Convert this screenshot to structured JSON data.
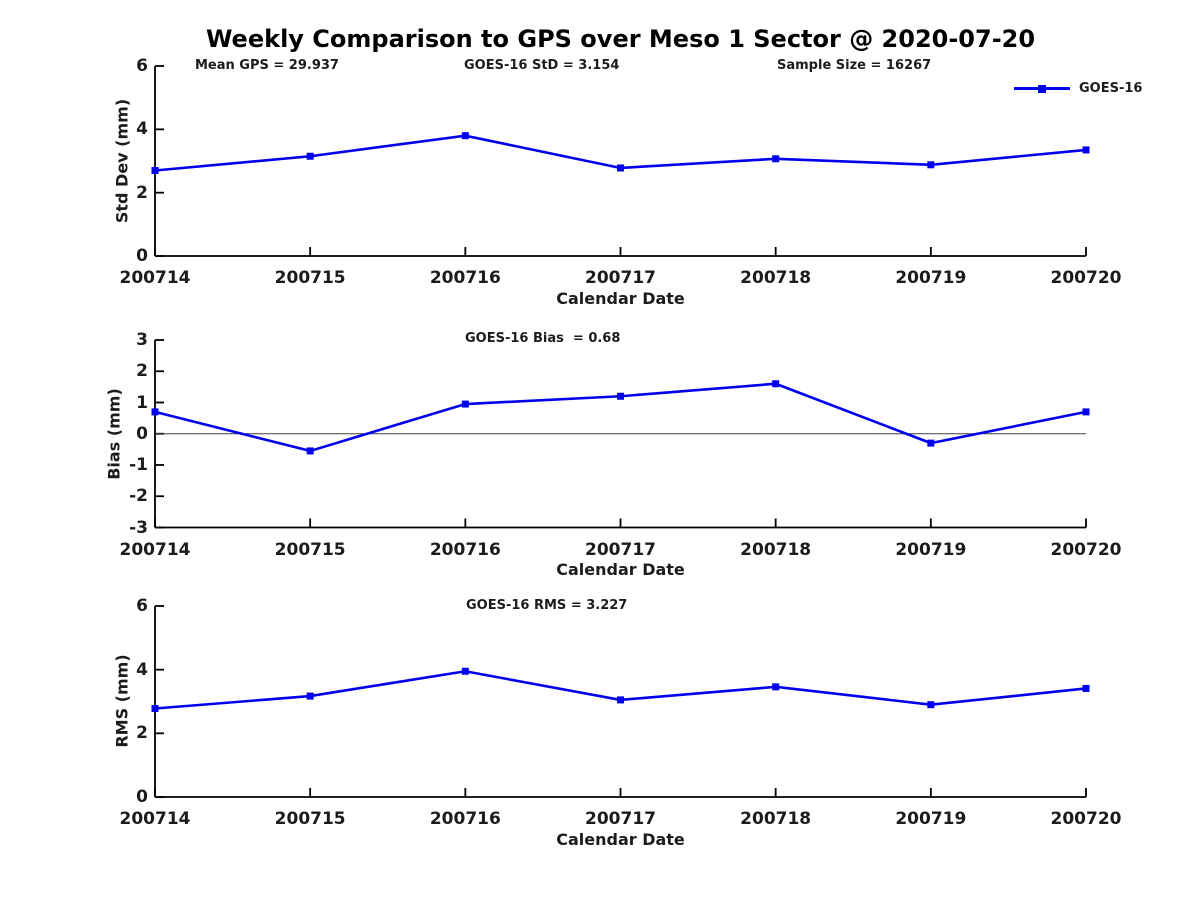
{
  "title": "Weekly Comparison to GPS over Meso 1 Sector @ 2020-07-20",
  "legend": {
    "label": "GOES-16"
  },
  "colors": {
    "series": "#0000EE",
    "axis": "#000000",
    "text": "#1c1c1c",
    "zero_line": "#404040"
  },
  "chart_data": [
    {
      "type": "line",
      "id": "std-dev",
      "categories": [
        "200714",
        "200715",
        "200716",
        "200717",
        "200718",
        "200719",
        "200720"
      ],
      "series": [
        {
          "name": "GOES-16",
          "values": [
            2.7,
            3.15,
            3.8,
            2.78,
            3.07,
            2.88,
            3.35
          ]
        }
      ],
      "xlabel": "Calendar Date",
      "ylabel": "Std Dev (mm)",
      "ylim": [
        0,
        6
      ],
      "yticks": [
        0,
        2,
        4,
        6
      ],
      "grid": false,
      "legend_position": "top-right",
      "annotations": [
        {
          "text": "Mean GPS = 29.937"
        },
        {
          "text": "GOES-16 StD = 3.154"
        },
        {
          "text": "Sample Size = 16267"
        }
      ]
    },
    {
      "type": "line",
      "id": "bias",
      "categories": [
        "200714",
        "200715",
        "200716",
        "200717",
        "200718",
        "200719",
        "200720"
      ],
      "series": [
        {
          "name": "GOES-16",
          "values": [
            0.7,
            -0.55,
            0.95,
            1.2,
            1.6,
            -0.3,
            0.7
          ]
        }
      ],
      "xlabel": "Calendar Date",
      "ylabel": "Bias (mm)",
      "ylim": [
        -3,
        3
      ],
      "yticks": [
        -3,
        -2,
        -1,
        0,
        1,
        2,
        3
      ],
      "zero_line": true,
      "grid": false,
      "annotations": [
        {
          "text": "GOES-16 Bias  = 0.68"
        }
      ]
    },
    {
      "type": "line",
      "id": "rms",
      "categories": [
        "200714",
        "200715",
        "200716",
        "200717",
        "200718",
        "200719",
        "200720"
      ],
      "series": [
        {
          "name": "GOES-16",
          "values": [
            2.78,
            3.17,
            3.95,
            3.05,
            3.46,
            2.9,
            3.41
          ]
        }
      ],
      "xlabel": "Calendar Date",
      "ylabel": "RMS (mm)",
      "ylim": [
        0,
        6
      ],
      "yticks": [
        0,
        2,
        4,
        6
      ],
      "grid": false,
      "annotations": [
        {
          "text": "GOES-16 RMS = 3.227"
        }
      ]
    }
  ]
}
